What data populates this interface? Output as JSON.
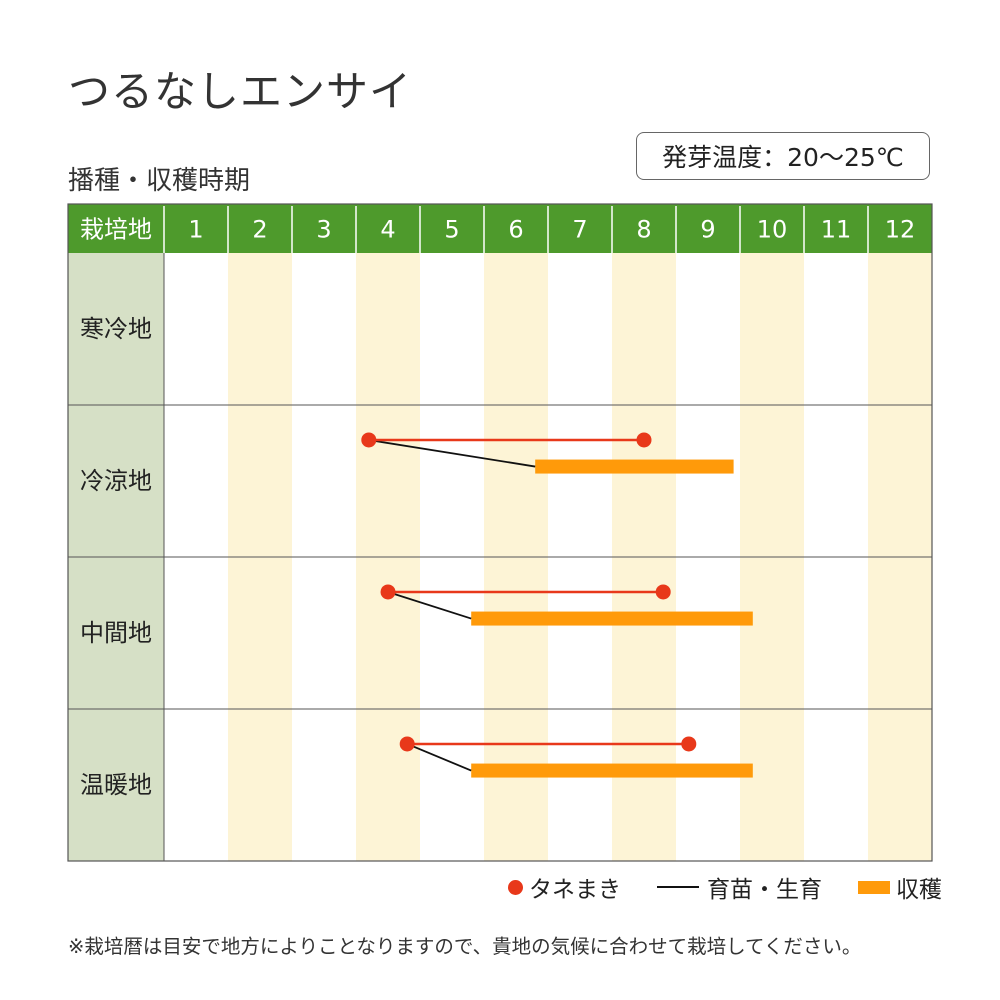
{
  "title": "つるなしエンサイ",
  "subtitle": "播種・収穫時期",
  "temperature": "発芽温度：20〜25℃",
  "note": "※栽培暦は目安で地方によりことなりますので、貴地の気候に合わせて栽培してください。",
  "legend": {
    "sowing": "タネまき",
    "seedling": "育苗・生育",
    "harvest": "収穫"
  },
  "colors": {
    "header_green": "#4e9a2c",
    "region_bg": "#d6e0c6",
    "alt_column": "#fdf4d6",
    "sowing_red": "#e8381a",
    "harvest_orange": "#ff9a0a",
    "grid_line": "#555555"
  },
  "chart_data": {
    "type": "table",
    "header_label": "栽培地",
    "months": [
      "1",
      "2",
      "3",
      "4",
      "5",
      "6",
      "7",
      "8",
      "9",
      "10",
      "11",
      "12"
    ],
    "regions": [
      {
        "name": "寒冷地",
        "sowing": null,
        "harvest": null
      },
      {
        "name": "冷涼地",
        "sowing": [
          4.2,
          8.5
        ],
        "harvest": [
          6.8,
          9.9
        ]
      },
      {
        "name": "中間地",
        "sowing": [
          4.5,
          8.8
        ],
        "harvest": [
          5.8,
          10.2
        ]
      },
      {
        "name": "温暖地",
        "sowing": [
          4.8,
          9.2
        ],
        "harvest": [
          5.8,
          10.2
        ]
      }
    ]
  }
}
